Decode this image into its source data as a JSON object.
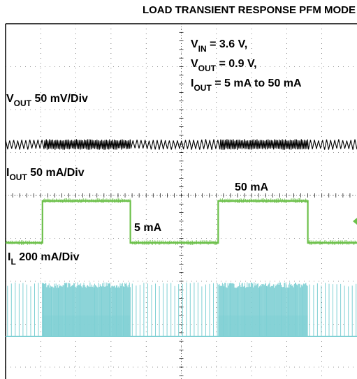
{
  "title": "LOAD TRANSIENT RESPONSE PFM MODE",
  "conditions": {
    "vin": {
      "sym": "V",
      "sub": "IN",
      "text": " = 3.6 V,"
    },
    "vout": {
      "sym": "V",
      "sub": "OUT",
      "text": " = 0.9 V,"
    },
    "iout": {
      "sym": "I",
      "sub": "OUT",
      "text": " = 5 mA to 50 mA"
    }
  },
  "channels": {
    "vout": {
      "sym": "V",
      "sub": "OUT",
      "scale": " 50 mV/Div"
    },
    "iout": {
      "sym": "I",
      "sub": "OUT",
      "scale": " 50 mA/Div"
    },
    "il": {
      "sym": "I",
      "sub": "L",
      "scale": "  200 mA/Div"
    }
  },
  "annotations": {
    "high_level": "50 mA",
    "low_level": "5 mA"
  },
  "colors": {
    "vout": "#000000",
    "iout": "#6cc04a",
    "il": "#7fd0d4",
    "grid": "#000000"
  },
  "chart_data": {
    "type": "line",
    "title": "LOAD TRANSIENT RESPONSE PFM MODE",
    "grid": {
      "divisions_x": 10,
      "divisions_y": 8,
      "visible": true
    },
    "x_range_div": [
      0,
      10
    ],
    "series": [
      {
        "name": "VOUT",
        "scale_per_div": "50 mV/Div",
        "ripple_amplitude_div": 0.25
      },
      {
        "name": "IOUT",
        "scale_per_div": "50 mA/Div",
        "steps": [
          {
            "t_div": 0.0,
            "i_mA": 5
          },
          {
            "t_div": 1.05,
            "i_mA": 50
          },
          {
            "t_div": 3.55,
            "i_mA": 5
          },
          {
            "t_div": 6.05,
            "i_mA": 50
          },
          {
            "t_div": 8.6,
            "i_mA": 5
          }
        ],
        "low_mA": 5,
        "high_mA": 50
      },
      {
        "name": "IL",
        "scale_per_div": "200 mA/Div",
        "peak_div": 1.75,
        "bursts": [
          {
            "start_div": 0.0,
            "end_div": 1.05,
            "density": "sparse"
          },
          {
            "start_div": 1.05,
            "end_div": 3.55,
            "density": "dense"
          },
          {
            "start_div": 3.55,
            "end_div": 6.05,
            "density": "sparse"
          },
          {
            "start_div": 6.05,
            "end_div": 8.6,
            "density": "dense"
          },
          {
            "start_div": 8.6,
            "end_div": 10.0,
            "density": "sparse"
          }
        ]
      }
    ]
  }
}
